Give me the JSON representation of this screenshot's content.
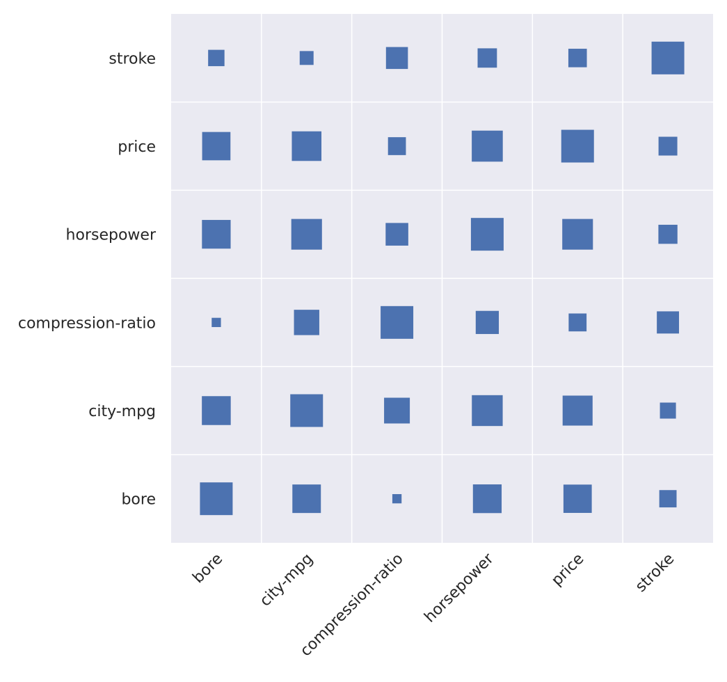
{
  "chart_data": {
    "type": "heatmap",
    "title": "",
    "xlabel": "",
    "ylabel": "",
    "x_categories": [
      "bore",
      "city-mpg",
      "compression-ratio",
      "horsepower",
      "price",
      "stroke"
    ],
    "y_categories": [
      "stroke",
      "price",
      "horsepower",
      "compression-ratio",
      "city-mpg",
      "bore"
    ],
    "value_range": [
      0,
      1
    ],
    "values": [
      [
        0.25,
        0.18,
        0.45,
        0.35,
        0.32,
        1.0
      ],
      [
        0.75,
        0.82,
        0.3,
        0.9,
        1.0,
        0.33
      ],
      [
        0.77,
        0.88,
        0.48,
        1.0,
        0.88,
        0.34
      ],
      [
        0.08,
        0.6,
        1.0,
        0.5,
        0.3,
        0.46
      ],
      [
        0.78,
        1.0,
        0.62,
        0.89,
        0.84,
        0.24
      ],
      [
        1.0,
        0.76,
        0.08,
        0.77,
        0.75,
        0.28
      ]
    ],
    "colors": {
      "marker": "#4c72b0",
      "cell_background": "#eaeaf2",
      "grid_line": "#ffffff",
      "text": "#262626"
    }
  }
}
